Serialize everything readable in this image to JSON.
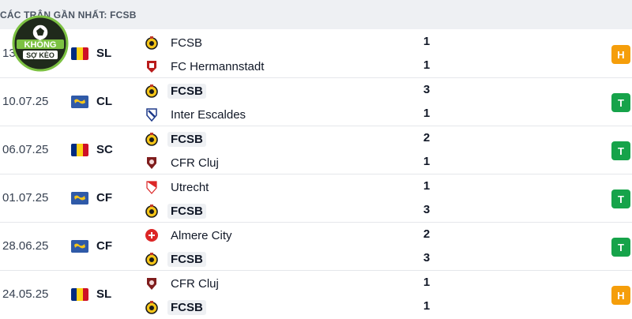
{
  "header": {
    "title": "CÁC TRẬN GẦN NHẤT: FCSB"
  },
  "logo": {
    "line1": "KHÔNG",
    "line2": "SỢ KÈO",
    "colors": {
      "ring": "#7cc142",
      "bg": "#1f2a1b",
      "text": "#ffffff"
    }
  },
  "result_colors": {
    "T": "#16a34a",
    "H": "#f59e0b"
  },
  "matches": [
    {
      "date": "13.",
      "flag": "ro",
      "comp": "SL",
      "home": {
        "name": "FCSB",
        "bold": false,
        "crest": "fcsb-crest"
      },
      "away": {
        "name": "FC Hermannstadt",
        "bold": false,
        "crest": "hermannstadt-crest"
      },
      "score_home": "1",
      "score_away": "1",
      "result": "H"
    },
    {
      "date": "10.07.25",
      "flag": "eu",
      "comp": "CL",
      "home": {
        "name": "FCSB",
        "bold": true,
        "crest": "fcsb-crest"
      },
      "away": {
        "name": "Inter Escaldes",
        "bold": false,
        "crest": "inter-escaldes-crest"
      },
      "score_home": "3",
      "score_away": "1",
      "result": "T"
    },
    {
      "date": "06.07.25",
      "flag": "ro",
      "comp": "SC",
      "home": {
        "name": "FCSB",
        "bold": true,
        "crest": "fcsb-crest"
      },
      "away": {
        "name": "CFR Cluj",
        "bold": false,
        "crest": "cfr-cluj-crest"
      },
      "score_home": "2",
      "score_away": "1",
      "result": "T"
    },
    {
      "date": "01.07.25",
      "flag": "eu",
      "comp": "CF",
      "home": {
        "name": "Utrecht",
        "bold": false,
        "crest": "utrecht-crest"
      },
      "away": {
        "name": "FCSB",
        "bold": true,
        "crest": "fcsb-crest"
      },
      "score_home": "1",
      "score_away": "3",
      "result": "T"
    },
    {
      "date": "28.06.25",
      "flag": "eu",
      "comp": "CF",
      "home": {
        "name": "Almere City",
        "bold": false,
        "crest": "almere-city-crest"
      },
      "away": {
        "name": "FCSB",
        "bold": true,
        "crest": "fcsb-crest"
      },
      "score_home": "2",
      "score_away": "3",
      "result": "T"
    },
    {
      "date": "24.05.25",
      "flag": "ro",
      "comp": "SL",
      "home": {
        "name": "CFR Cluj",
        "bold": false,
        "crest": "cfr-cluj-crest"
      },
      "away": {
        "name": "FCSB",
        "bold": true,
        "crest": "fcsb-crest"
      },
      "score_home": "1",
      "score_away": "1",
      "result": "H"
    }
  ]
}
